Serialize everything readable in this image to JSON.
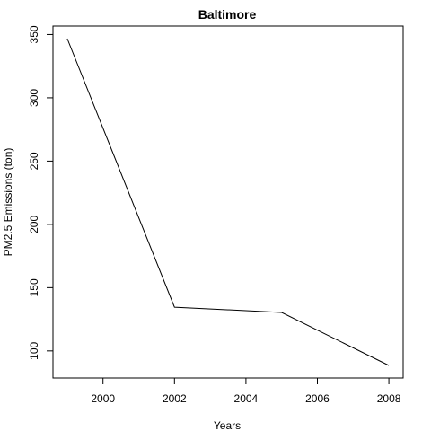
{
  "chart_data": {
    "type": "line",
    "title": "Baltimore",
    "xlabel": "Years",
    "ylabel": "PM2.5 Emissions (ton)",
    "x": [
      1999,
      2002,
      2005,
      2008
    ],
    "series": [
      {
        "values": [
          346.8,
          134.6,
          130.4,
          88.5
        ]
      }
    ],
    "xlim": [
      1998.6,
      2008.4
    ],
    "ylim": [
      78.6,
      356.7
    ],
    "xticks": [
      "2000",
      "2002",
      "2004",
      "2006",
      "2008"
    ],
    "yticks": [
      "100",
      "150",
      "200",
      "250",
      "300",
      "350"
    ],
    "grid": false,
    "line_color": "#000000"
  }
}
